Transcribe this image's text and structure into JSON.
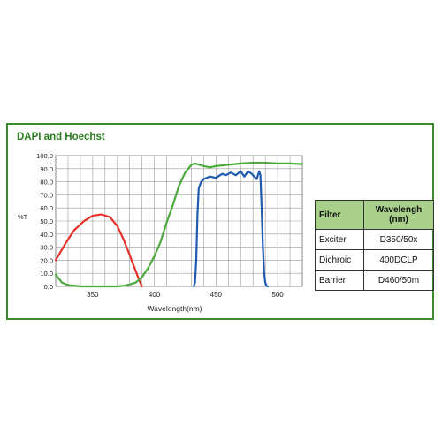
{
  "title": "DAPI and Hoechst",
  "colors": {
    "border": "#3a8a2c",
    "title": "#2c7d22",
    "exciter": "#e8302b",
    "dichroic": "#4caa3c",
    "barrier": "#1f5bb0",
    "grid": "#9a9a9a",
    "table_header": "#a8d08a"
  },
  "chart_data": {
    "type": "line",
    "xlabel": "Wavelength(nm)",
    "ylabel": "%T",
    "xlim": [
      320,
      520
    ],
    "ylim": [
      0,
      100
    ],
    "xticks": [
      350,
      400,
      450,
      500
    ],
    "yticks": [
      0,
      10,
      20,
      30,
      40,
      50,
      60,
      70,
      80,
      90,
      100
    ],
    "grid": true,
    "series": [
      {
        "key": "exciter",
        "x": [
          320,
          328,
          335,
          343,
          350,
          357,
          364,
          370,
          375,
          380,
          384,
          388,
          390
        ],
        "y": [
          20,
          33,
          43,
          50,
          54,
          55,
          53,
          46,
          36,
          24,
          14,
          4,
          0
        ]
      },
      {
        "key": "dichroic",
        "x": [
          320,
          325,
          330,
          340,
          350,
          360,
          370,
          375,
          380,
          385,
          390,
          395,
          400,
          405,
          410,
          415,
          420,
          425,
          430,
          433,
          440,
          445,
          450,
          460,
          470,
          480,
          490,
          500,
          510,
          520
        ],
        "y": [
          9,
          3,
          1,
          0,
          0,
          0,
          0,
          0.5,
          1.5,
          3,
          7,
          14,
          23,
          34,
          49,
          62,
          77,
          87,
          93,
          94,
          92,
          91,
          92,
          93,
          94,
          94.5,
          94.5,
          94,
          94,
          93.5
        ]
      },
      {
        "key": "barrier",
        "x": [
          432,
          433,
          434,
          435,
          436,
          438,
          440,
          445,
          450,
          455,
          458,
          462,
          466,
          470,
          473,
          476,
          479,
          481,
          483,
          485,
          486,
          487,
          488,
          489,
          490,
          491,
          492
        ],
        "y": [
          0,
          3,
          20,
          55,
          75,
          80,
          82,
          84,
          83,
          86,
          85,
          87,
          85,
          88,
          84,
          88,
          86,
          84,
          82,
          88,
          85,
          60,
          30,
          10,
          3,
          0.5,
          0
        ]
      }
    ]
  },
  "table": {
    "headers": [
      "Filter",
      "Wavelengh (nm)"
    ],
    "rows": [
      [
        "Exciter",
        "D350/50x"
      ],
      [
        "Dichroic",
        "400DCLP"
      ],
      [
        "Barrier",
        "D460/50m"
      ]
    ]
  }
}
